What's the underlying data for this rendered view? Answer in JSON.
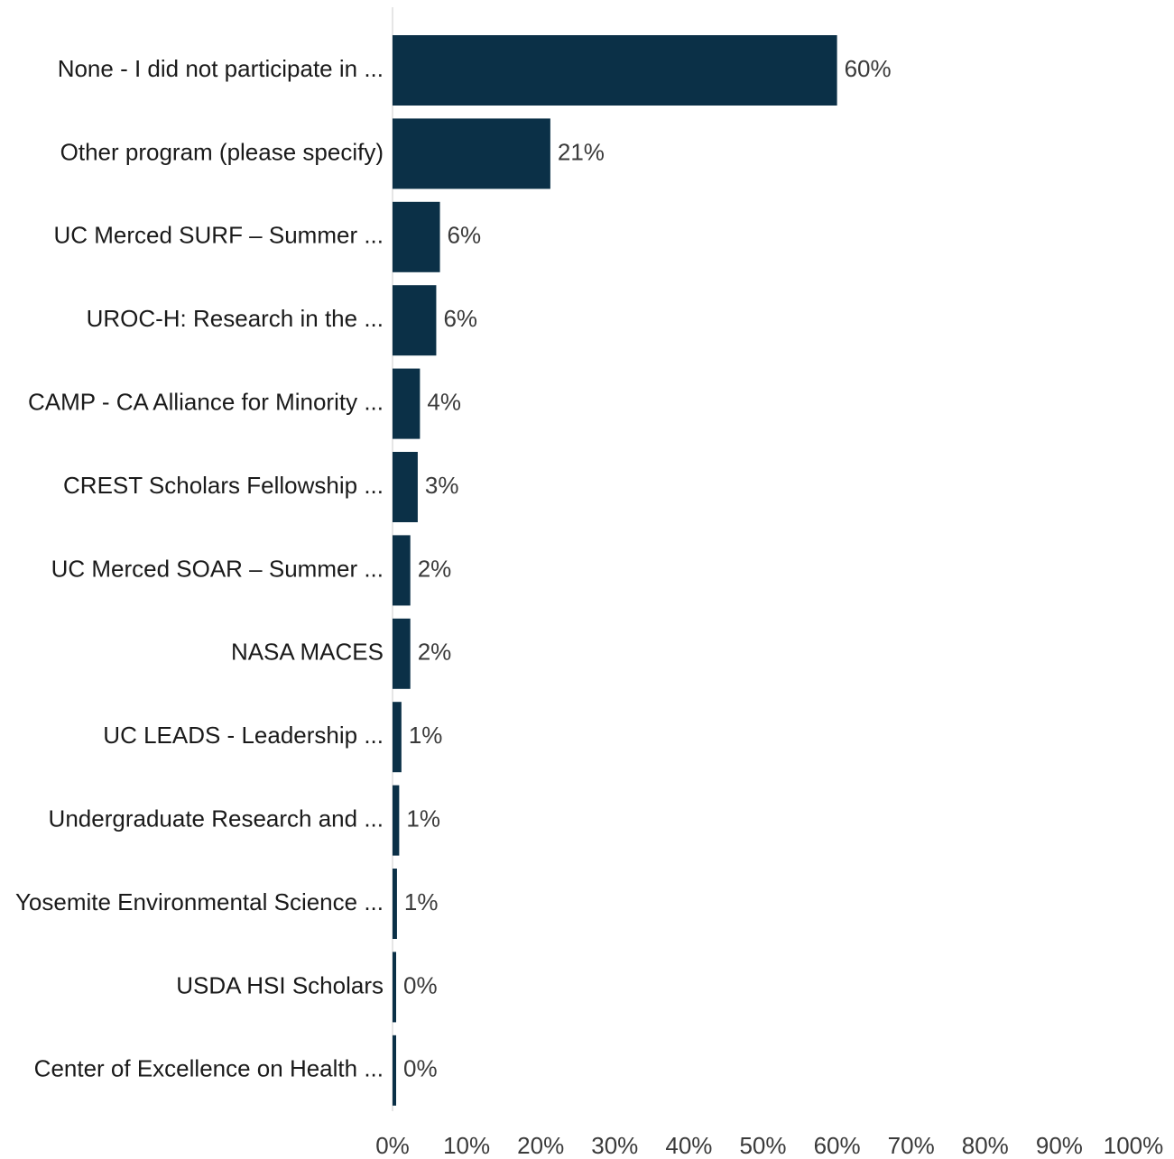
{
  "chart_data": {
    "type": "bar",
    "orientation": "horizontal",
    "title": "",
    "xlabel": "",
    "ylabel": "",
    "categories": [
      "None - I did not participate in ...",
      "Other program (please specify)",
      "UC Merced SURF – Summer ...",
      "UROC-H: Research in the ...",
      "CAMP - CA Alliance for Minority ...",
      "CREST Scholars Fellowship ...",
      "UC Merced SOAR – Summer ...",
      "NASA MACES",
      "UC LEADS - Leadership ...",
      "Undergraduate Research and ...",
      "Yosemite Environmental Science ...",
      "USDA HSI Scholars",
      "Center of Excellence on Health ..."
    ],
    "values": [
      60,
      21.3,
      6.4,
      5.9,
      3.7,
      3.4,
      2.4,
      2.4,
      1.2,
      0.9,
      0.6,
      0.3,
      0.3
    ],
    "data_labels": [
      "60%",
      "21%",
      "6%",
      "6%",
      "4%",
      "3%",
      "2%",
      "2%",
      "1%",
      "1%",
      "1%",
      "0%",
      "0%"
    ],
    "xlim": [
      0,
      100
    ],
    "x_ticks": [
      0,
      10,
      20,
      30,
      40,
      50,
      60,
      70,
      80,
      90,
      100
    ],
    "x_tick_labels": [
      "0%",
      "10%",
      "20%",
      "30%",
      "40%",
      "50%",
      "60%",
      "70%",
      "80%",
      "90%",
      "100%"
    ],
    "grid": false,
    "bar_color": "#0b3047",
    "axis_line_color": "#e6e6e6"
  }
}
